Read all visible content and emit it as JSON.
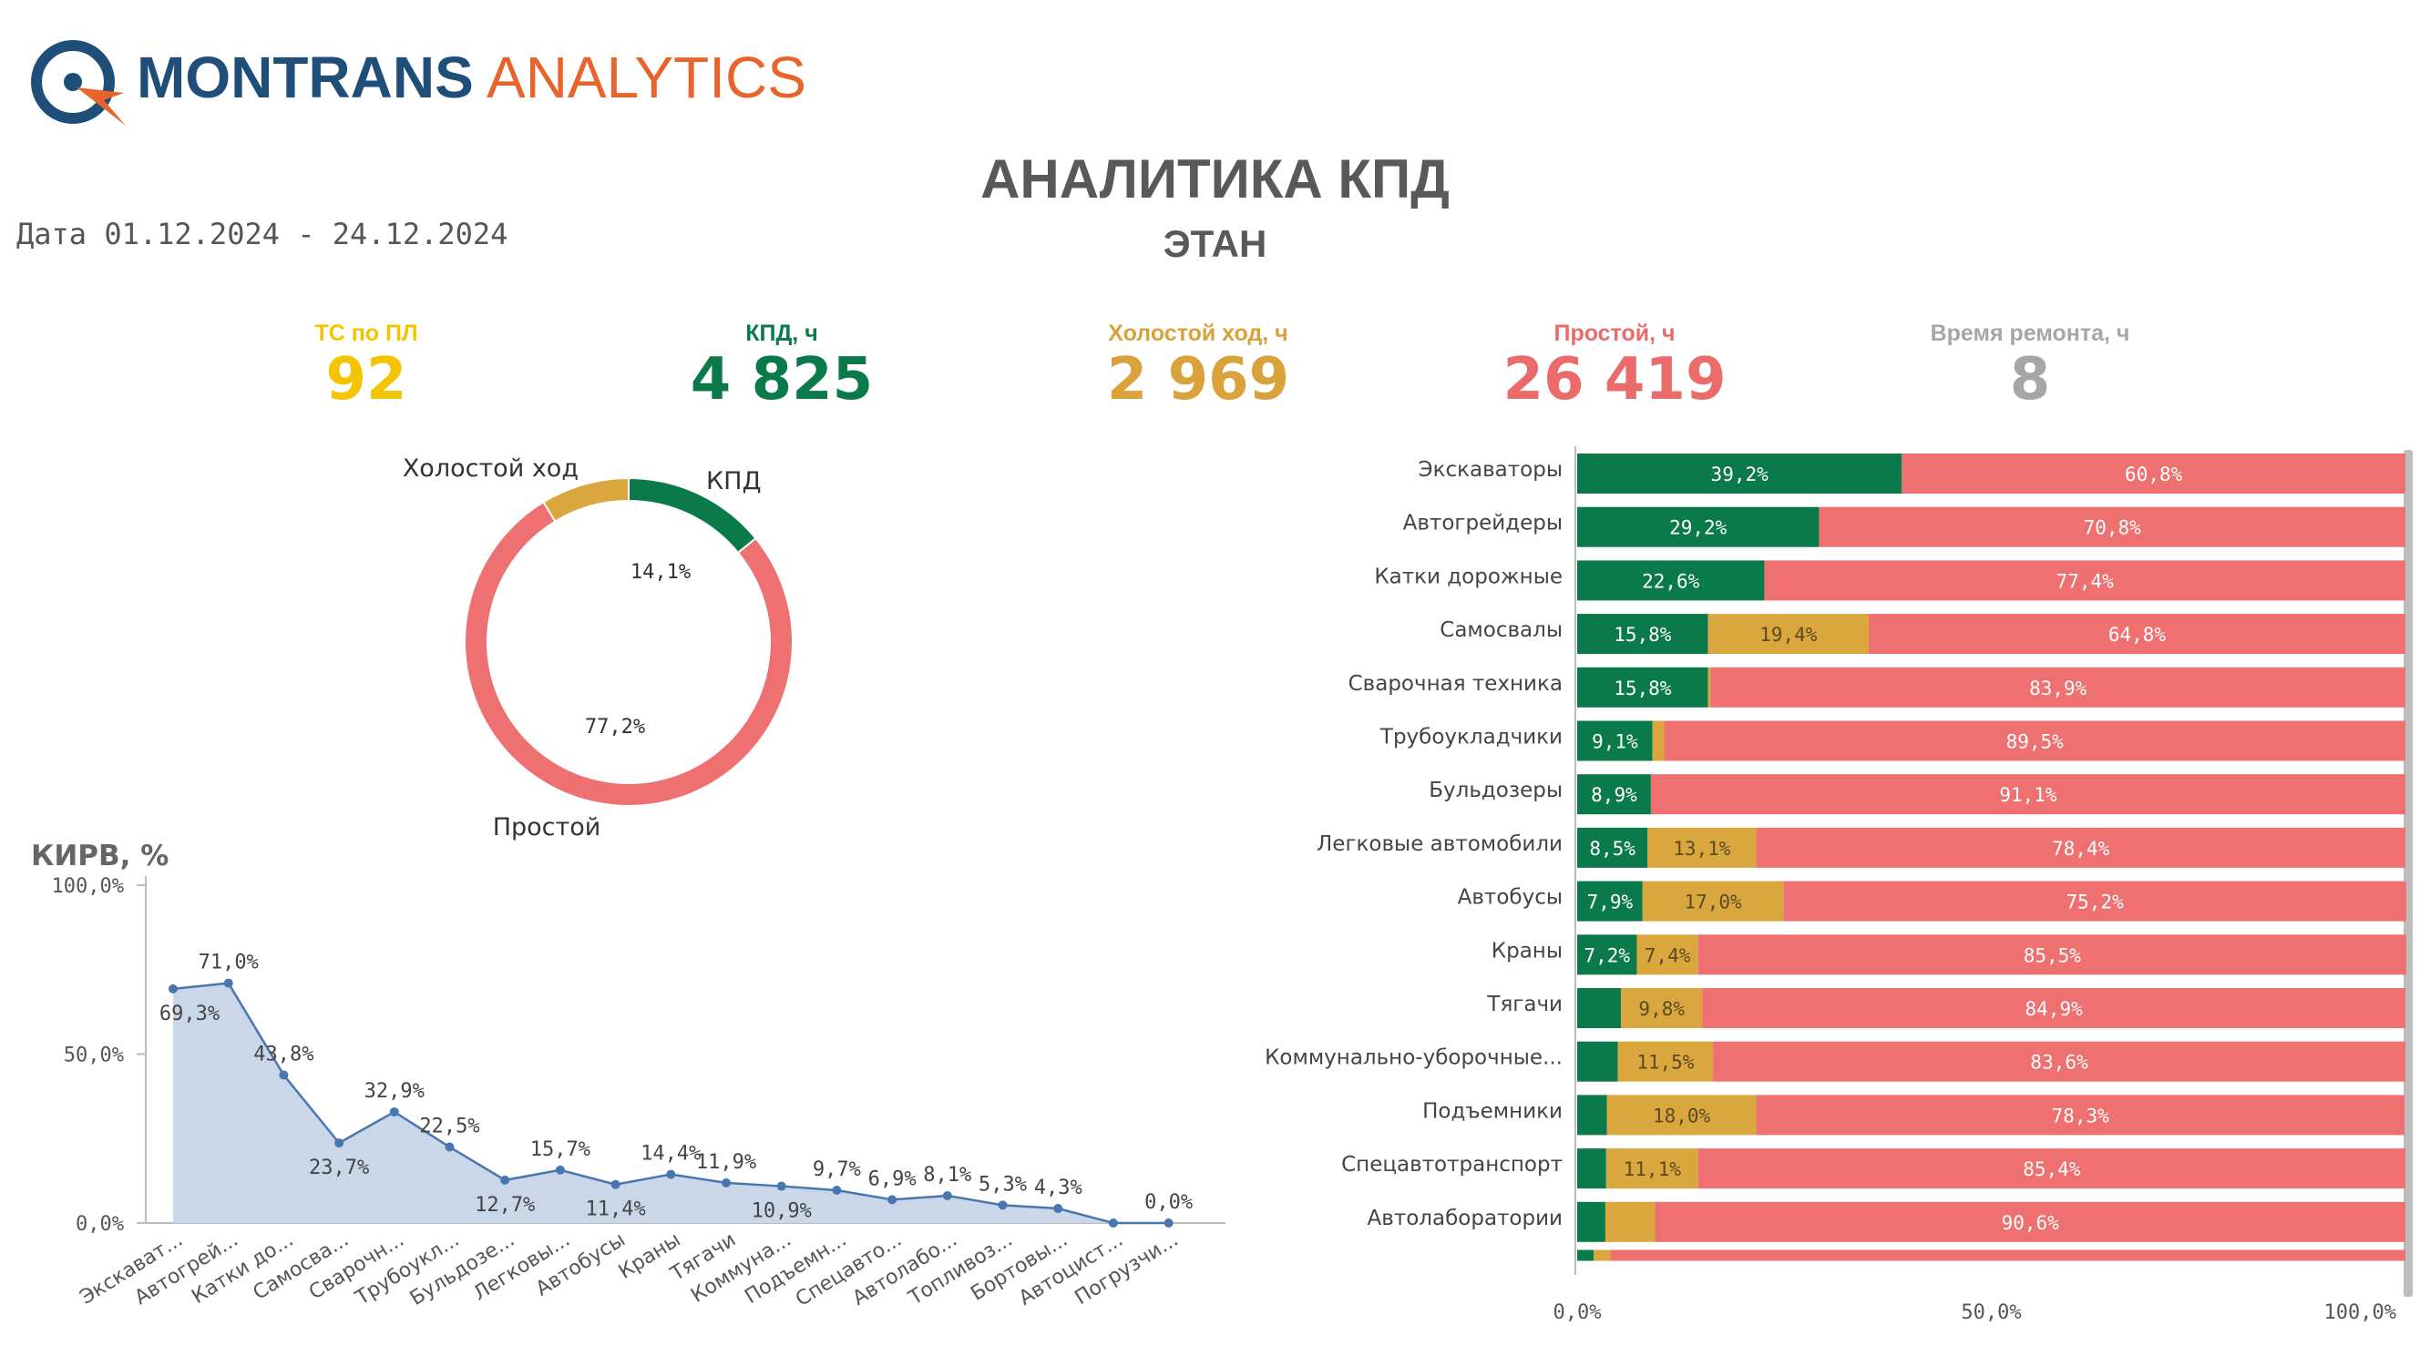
{
  "header": {
    "brand_bold": "MONTRANS",
    "brand_light": "ANALYTICS",
    "title": "АНАЛИТИКА КПД",
    "subtitle": "ЭТАН",
    "date": "Дата 01.12.2024 - 24.12.2024"
  },
  "kpis": [
    {
      "label": "ТС по ПЛ",
      "value": "92",
      "color": "#f5c400"
    },
    {
      "label": "КПД, ч",
      "value": "4 825",
      "color": "#0b7a4b"
    },
    {
      "label": "Холостой ход, ч",
      "value": "2 969",
      "color": "#d9a23a"
    },
    {
      "label": "Простой, ч",
      "value": "26 419",
      "color": "#eb6a6a"
    },
    {
      "label": "Время ремонта, ч",
      "value": "8",
      "color": "#a6a6a6"
    }
  ],
  "colors": {
    "kpd": "#0b7a4b",
    "idle": "#d9a73e",
    "down": "#ef7070",
    "area": "#c9d7e8",
    "line": "#4a76b0"
  },
  "chart_data": [
    {
      "type": "pie",
      "slices": [
        {
          "label": "КПД",
          "value": 14.1,
          "value_label": "14,1%"
        },
        {
          "label": "Простой",
          "value": 77.2,
          "value_label": "77,2%"
        },
        {
          "label": "Холостой ход",
          "value": 8.7,
          "value_label": ""
        }
      ]
    },
    {
      "type": "area",
      "title": "КИРВ, %",
      "yticks": [
        "100,0%",
        "50,0%",
        "0,0%"
      ],
      "ylim": [
        0,
        100
      ],
      "categories": [
        "Экскават...",
        "Автогрей...",
        "Катки до...",
        "Самосва...",
        "Сварочн...",
        "Трубоукл...",
        "Бульдозе...",
        "Легковы...",
        "Автобусы",
        "Краны",
        "Тягачи",
        "Коммуна...",
        "Подъемн...",
        "Спецавто...",
        "Автолабо...",
        "Топливоз...",
        "Бортовы...",
        "Автоцист...",
        "Погрузчи..."
      ],
      "values": [
        69.3,
        71.0,
        43.8,
        23.7,
        32.9,
        22.5,
        12.7,
        15.7,
        11.4,
        14.4,
        11.9,
        10.9,
        9.7,
        6.9,
        8.1,
        5.3,
        4.3,
        0.0,
        0.0
      ],
      "labels": [
        "69,3%",
        "71,0%",
        "43,8%",
        "23,7%",
        "32,9%",
        "22,5%",
        "12,7%",
        "15,7%",
        "11,4%",
        "14,4%",
        "11,9%",
        "10,9%",
        "9,7%",
        "6,9%",
        "8,1%",
        "5,3%",
        "4,3%",
        "",
        "0,0%"
      ]
    },
    {
      "type": "bar",
      "orientation": "horizontal",
      "stacked": "percent",
      "xticks": [
        "0,0%",
        "50,0%",
        "100,0%"
      ],
      "xlim": [
        0,
        100
      ],
      "series": [
        {
          "values": [
            39.2,
            29.2,
            22.6,
            15.8,
            15.8,
            9.1,
            8.9,
            8.5,
            7.9,
            7.2,
            5.3,
            4.9,
            3.6,
            3.5,
            3.4,
            2.0
          ],
          "labels": [
            "39,2%",
            "29,2%",
            "22,6%",
            "15,8%",
            "15,8%",
            "9,1%",
            "8,9%",
            "8,5%",
            "7,9%",
            "7,2%",
            "",
            "",
            "",
            "",
            "",
            ""
          ]
        },
        {
          "values": [
            0,
            0,
            0,
            19.4,
            0.3,
            1.4,
            0,
            13.1,
            17.0,
            7.4,
            9.8,
            11.5,
            18.0,
            11.1,
            6.0,
            2.0
          ],
          "labels": [
            "",
            "",
            "",
            "19,4%",
            "",
            "",
            "",
            "13,1%",
            "17,0%",
            "7,4%",
            "9,8%",
            "11,5%",
            "18,0%",
            "11,1%",
            "",
            ""
          ]
        },
        {
          "values": [
            60.8,
            70.8,
            77.4,
            64.8,
            83.9,
            89.5,
            91.1,
            78.4,
            75.2,
            85.5,
            84.9,
            83.6,
            78.3,
            85.4,
            90.6,
            96.0
          ],
          "labels": [
            "60,8%",
            "70,8%",
            "77,4%",
            "64,8%",
            "83,9%",
            "89,5%",
            "91,1%",
            "78,4%",
            "75,2%",
            "85,5%",
            "84,9%",
            "83,6%",
            "78,3%",
            "85,4%",
            "90,6%",
            ""
          ]
        }
      ],
      "categories": [
        "Экскаваторы",
        "Автогрейдеры",
        "Катки дорожные",
        "Самосвалы",
        "Сварочная техника",
        "Трубоукладчики",
        "Бульдозеры",
        "Легковые автомобили",
        "Автобусы",
        "Краны",
        "Тягачи",
        "Коммунально-уборочные...",
        "Подъемники",
        "Спецавтотранспорт",
        "Автолаборатории",
        ""
      ]
    }
  ]
}
